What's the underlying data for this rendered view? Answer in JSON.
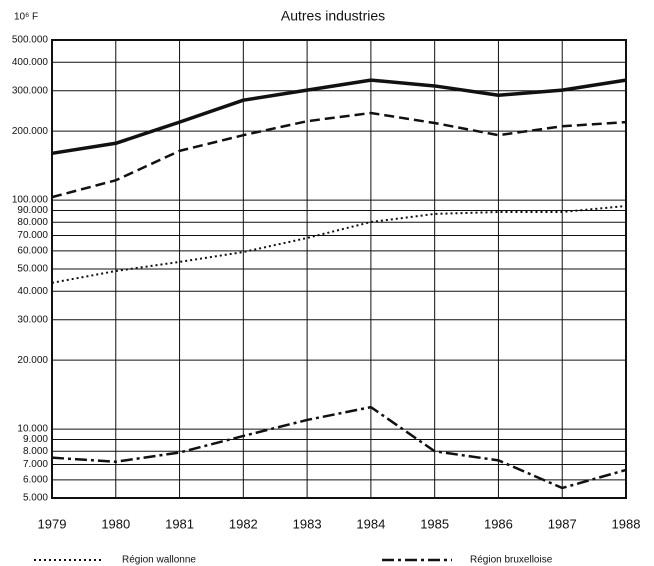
{
  "chart_data": {
    "type": "line",
    "title": "Autres industries",
    "y_label": "10⁶ F",
    "x": [
      1979,
      1980,
      1981,
      1982,
      1983,
      1984,
      1985,
      1986,
      1987,
      1988
    ],
    "xlim": [
      1979,
      1988
    ],
    "xticks": [
      1979,
      1980,
      1981,
      1982,
      1983,
      1984,
      1985,
      1986,
      1987,
      1988
    ],
    "log_y": true,
    "grid": true,
    "legend": "bottom",
    "ylim": [
      5000,
      500000
    ],
    "yticks": [
      {
        "value": 500000,
        "label": "500.000"
      },
      {
        "value": 400000,
        "label": "400.000"
      },
      {
        "value": 300000,
        "label": "300.000"
      },
      {
        "value": 200000,
        "label": "200.000"
      },
      {
        "value": 100000,
        "label": "100.000"
      },
      {
        "value": 90000,
        "label": "90.000"
      },
      {
        "value": 80000,
        "label": "80.000"
      },
      {
        "value": 70000,
        "label": "70.000"
      },
      {
        "value": 60000,
        "label": "60.000"
      },
      {
        "value": 50000,
        "label": "50.000"
      },
      {
        "value": 40000,
        "label": "40.000"
      },
      {
        "value": 30000,
        "label": "30.000"
      },
      {
        "value": 20000,
        "label": "20.000"
      },
      {
        "value": 10000,
        "label": "10.000"
      },
      {
        "value": 9000,
        "label": "9.000"
      },
      {
        "value": 8000,
        "label": "8.000"
      },
      {
        "value": 7000,
        "label": "7.000"
      },
      {
        "value": 6000,
        "label": "6.000"
      },
      {
        "value": 5000,
        "label": "5.000"
      }
    ],
    "series": [
      {
        "color": "#111111",
        "style": "solid",
        "values": [
          160000,
          177000,
          219000,
          273000,
          302000,
          334000,
          315000,
          287000,
          302000,
          334000
        ]
      },
      {
        "color": "#111111",
        "style": "dashed",
        "values": [
          103000,
          122000,
          164000,
          192000,
          221000,
          240000,
          217000,
          192000,
          210000,
          219000
        ]
      },
      {
        "name": "Région wallonne",
        "color": "#111111",
        "style": "dotted",
        "values": [
          43500,
          49000,
          53700,
          59300,
          68300,
          80200,
          87000,
          88700,
          88700,
          94200
        ]
      },
      {
        "name": "Région bruxelloise",
        "color": "#111111",
        "style": "dashdot",
        "values": [
          7500,
          7200,
          7900,
          9330,
          10960,
          12470,
          8000,
          7300,
          5530,
          6630
        ]
      }
    ]
  }
}
